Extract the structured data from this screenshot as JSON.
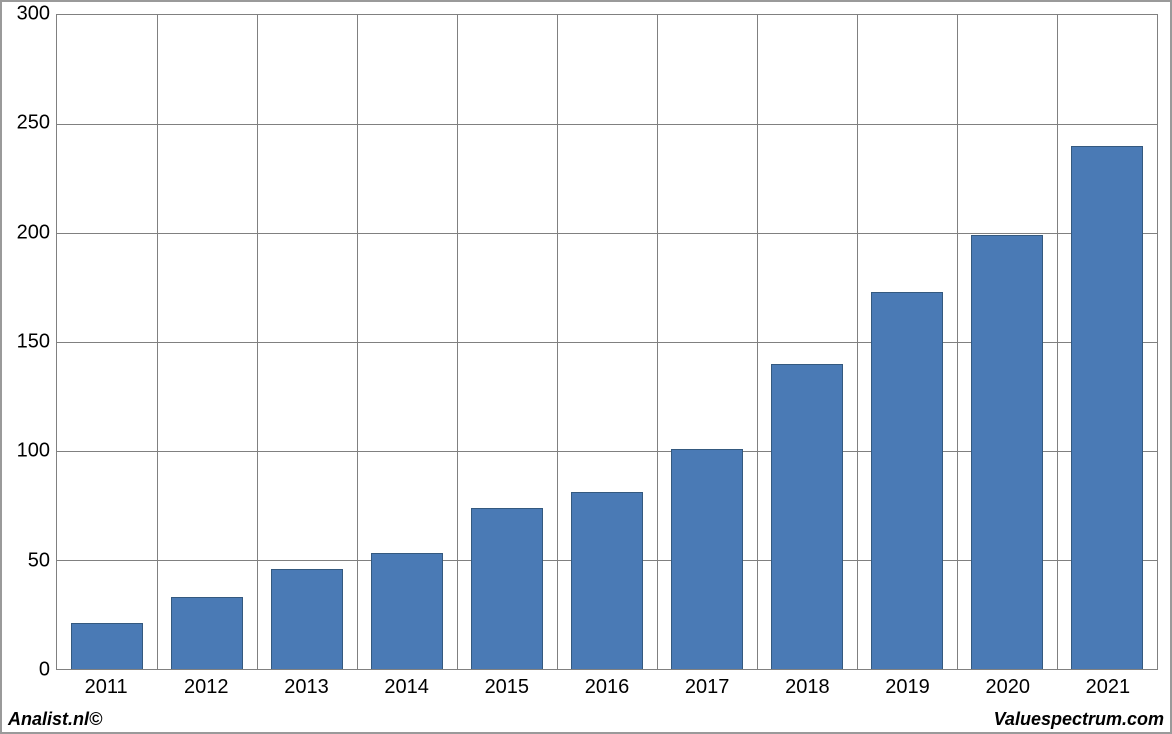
{
  "chart": {
    "type": "bar",
    "categories": [
      "2011",
      "2012",
      "2013",
      "2014",
      "2015",
      "2016",
      "2017",
      "2018",
      "2019",
      "2020",
      "2021"
    ],
    "values": [
      21,
      33,
      46,
      53,
      74,
      81,
      101,
      140,
      173,
      199,
      240
    ],
    "bar_color": "#4a7ab5",
    "bar_border_color": "#34597f",
    "bar_width_ratio": 0.72,
    "ylim": [
      0,
      300
    ],
    "ytick_step": 50,
    "yticks": [
      0,
      50,
      100,
      150,
      200,
      250,
      300
    ],
    "grid_color": "#808080",
    "frame_border_color": "#9a9a9a",
    "plot_border_color": "#808080",
    "background_color": "#ffffff",
    "tick_fontsize": 20,
    "tick_color": "#000000"
  },
  "footer": {
    "left": "Analist.nl©",
    "right": "Valuespectrum.com",
    "fontsize": 18,
    "fontweight": "bold",
    "fontstyle": "italic",
    "color": "#000000"
  }
}
